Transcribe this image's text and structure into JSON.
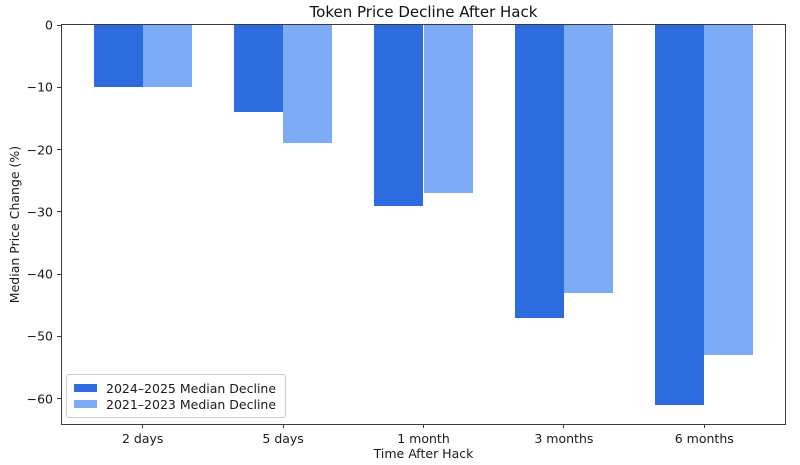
{
  "figure": {
    "title": "Token Price Decline After Hack",
    "xlabel": "Time After Hack",
    "ylabel": "Median Price Change (%)"
  },
  "chart_data": {
    "type": "bar",
    "title": "Token Price Decline After Hack",
    "xlabel": "Time After Hack",
    "ylabel": "Median Price Change (%)",
    "categories": [
      "2 days",
      "5 days",
      "1 month",
      "3 months",
      "6 months"
    ],
    "series": [
      {
        "name": "2024–2025 Median Decline",
        "color": "#2d6cdf",
        "values": [
          -10,
          -14,
          -29,
          -47,
          -61
        ]
      },
      {
        "name": "2021–2023 Median Decline",
        "color": "#7dabf5",
        "values": [
          -10,
          -19,
          -27,
          -43,
          -53
        ]
      }
    ],
    "bar_width": 0.35,
    "ylim": [
      -64.05,
      0
    ],
    "xlim": [
      -0.575,
      4.575
    ],
    "yticks": [
      0,
      -10,
      -20,
      -30,
      -40,
      -50,
      -60
    ],
    "grid": false,
    "legend_position": "lower left"
  }
}
